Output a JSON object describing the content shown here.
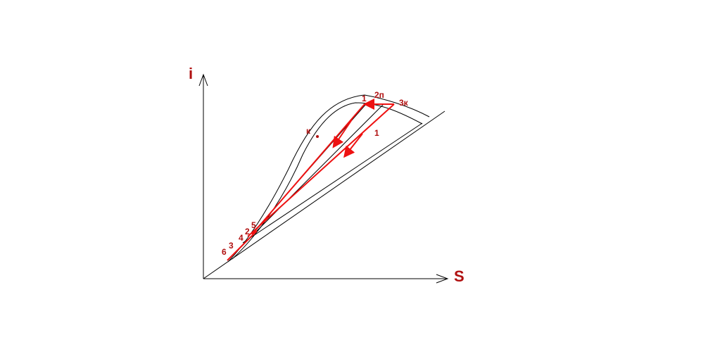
{
  "axes": {
    "y_label": "i",
    "x_label": "S"
  },
  "labels": {
    "p1": "1",
    "p2p": "2п",
    "p3k": "3к",
    "pk": "к",
    "p1b": "1",
    "p5": "5",
    "p2": "2",
    "p4": "4",
    "p3": "3",
    "p6": "6"
  },
  "colors": {
    "cycle": "#ee1111",
    "label": "#b01010",
    "lines": "#000000"
  }
}
